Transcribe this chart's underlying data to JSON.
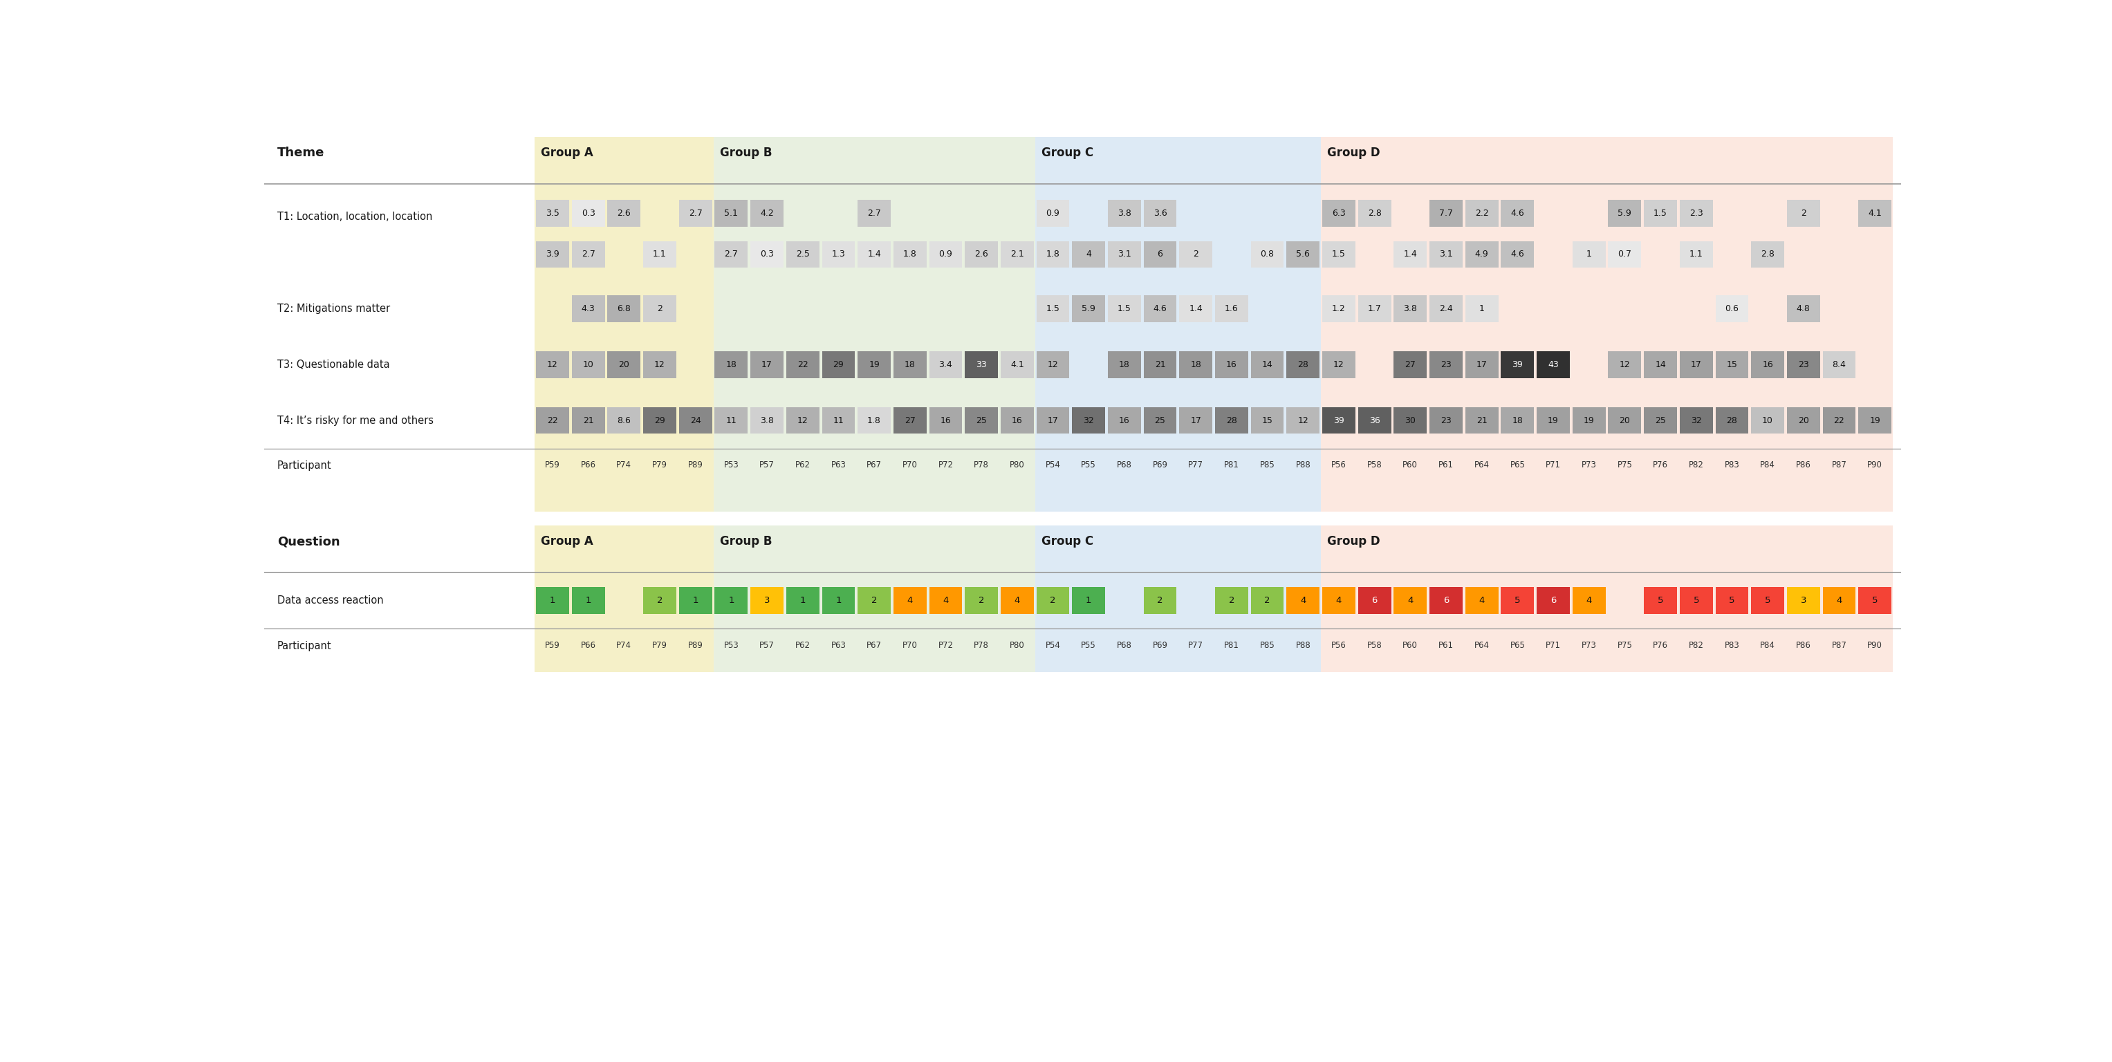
{
  "title_row_label": "Theme",
  "title_row_label2": "Question",
  "groups": [
    "Group A",
    "Group B",
    "Group C",
    "Group D"
  ],
  "group_bg_colors": [
    "#f5f0c8",
    "#e8f0e0",
    "#ddeaf5",
    "#fce8e0"
  ],
  "participants": [
    "P59",
    "P66",
    "P74",
    "P79",
    "P89",
    "P53",
    "P57",
    "P62",
    "P63",
    "P67",
    "P70",
    "P72",
    "P78",
    "P80",
    "P54",
    "P55",
    "P68",
    "P69",
    "P77",
    "P81",
    "P85",
    "P88",
    "P56",
    "P58",
    "P60",
    "P61",
    "P64",
    "P65",
    "P71",
    "P73",
    "P75",
    "P76",
    "P82",
    "P83",
    "P84",
    "P86",
    "P87",
    "P90"
  ],
  "group_participant_ranges": [
    [
      0,
      5
    ],
    [
      5,
      14
    ],
    [
      14,
      22
    ],
    [
      22,
      38
    ]
  ],
  "themes": [
    {
      "label": "T1: Location, location, location",
      "row1": {
        "values": [
          "3.5",
          "0.3",
          "2.6",
          "",
          "2.7",
          "5.1",
          "4.2",
          "",
          "",
          "2.7",
          "",
          "",
          "",
          "",
          "0.9",
          "",
          "3.8",
          "3.6",
          "",
          "",
          "",
          "",
          "6.3",
          "2.8",
          "",
          "7.7",
          "2.2",
          "4.6",
          "",
          "",
          "5.9",
          "1.5",
          "2.3",
          "",
          "",
          "2",
          "",
          "4.1"
        ],
        "colors": [
          "#d0d0d0",
          "#e8e8e8",
          "#c8c8c8",
          "",
          "#d0d0d0",
          "#b8b8b8",
          "#c0c0c0",
          "",
          "",
          "#c8c8c8",
          "",
          "",
          "",
          "",
          "#e0e0e0",
          "",
          "#c8c8c8",
          "#c8c8c8",
          "",
          "",
          "",
          "",
          "#b8b8b8",
          "#d0d0d0",
          "",
          "#b0b0b0",
          "#c8c8c8",
          "#c0c0c0",
          "",
          "",
          "#b8b8b8",
          "#d0d0d0",
          "#d0d0d0",
          "",
          "",
          "#d0d0d0",
          "",
          "#c0c0c0"
        ]
      },
      "row2": {
        "values": [
          "3.9",
          "2.7",
          "",
          "1.1",
          "",
          "2.7",
          "0.3",
          "2.5",
          "1.3",
          "1.4",
          "1.8",
          "0.9",
          "2.6",
          "2.1",
          "1.8",
          "4",
          "3.1",
          "6",
          "2",
          "",
          "0.8",
          "5.6",
          "1.5",
          "",
          "1.4",
          "3.1",
          "4.9",
          "4.6",
          "",
          "1",
          "0.7",
          "",
          "1.1",
          "",
          "2.8",
          "",
          "",
          ""
        ],
        "colors": [
          "#c8c8c8",
          "#d0d0d0",
          "",
          "#e0e0e0",
          "",
          "#d0d0d0",
          "#e8e8e8",
          "#d0d0d0",
          "#e0e0e0",
          "#e0e0e0",
          "#d8d8d8",
          "#e0e0e0",
          "#d0d0d0",
          "#d8d8d8",
          "#d8d8d8",
          "#c0c0c0",
          "#d0d0d0",
          "#b8b8b8",
          "#d8d8d8",
          "",
          "#e0e0e0",
          "#b8b8b8",
          "#d8d8d8",
          "",
          "#e0e0e0",
          "#d0d0d0",
          "#c0c0c0",
          "#c0c0c0",
          "",
          "#e0e0e0",
          "#e8e8e8",
          "",
          "#e0e0e0",
          "",
          "#d0d0d0",
          "",
          "",
          ""
        ]
      }
    },
    {
      "label": "T2: Mitigations matter",
      "row1": {
        "values": [
          "",
          "4.3",
          "6.8",
          "2",
          "",
          "",
          "",
          "",
          "",
          "",
          "",
          "",
          "",
          "",
          "1.5",
          "5.9",
          "1.5",
          "4.6",
          "1.4",
          "1.6",
          "",
          "",
          "1.2",
          "1.7",
          "3.8",
          "2.4",
          "1",
          "",
          "",
          "",
          "",
          "",
          "",
          "0.6",
          "",
          "4.8",
          "",
          ""
        ],
        "colors": [
          "",
          "#c0c0c0",
          "#b0b0b0",
          "#d0d0d0",
          "",
          "",
          "",
          "",
          "",
          "",
          "",
          "",
          "",
          "",
          "#d8d8d8",
          "#b8b8b8",
          "#d8d8d8",
          "#c0c0c0",
          "#e0e0e0",
          "#d8d8d8",
          "",
          "",
          "#e0e0e0",
          "#d8d8d8",
          "#c8c8c8",
          "#d0d0d0",
          "#e0e0e0",
          "",
          "",
          "",
          "",
          "",
          "",
          "#e8e8e8",
          "",
          "#c0c0c0",
          "",
          ""
        ]
      }
    },
    {
      "label": "T3: Questionable data",
      "row1": {
        "values": [
          "12",
          "10",
          "20",
          "12",
          "",
          "18",
          "17",
          "22",
          "29",
          "19",
          "18",
          "3.4",
          "33",
          "4.1",
          "12",
          "",
          "18",
          "21",
          "18",
          "16",
          "14",
          "28",
          "12",
          "",
          "27",
          "23",
          "17",
          "39",
          "43",
          "",
          "12",
          "14",
          "17",
          "15",
          "16",
          "23",
          "8.4",
          ""
        ],
        "colors": [
          "#b0b0b0",
          "#b8b8b8",
          "#989898",
          "#b0b0b0",
          "",
          "#989898",
          "#a0a0a0",
          "#909090",
          "#787878",
          "#909090",
          "#989898",
          "#d0d0d0",
          "#606060",
          "#d0d0d0",
          "#b0b0b0",
          "",
          "#989898",
          "#909090",
          "#989898",
          "#a0a0a0",
          "#a8a8a8",
          "#808080",
          "#b0b0b0",
          "",
          "#787878",
          "#888888",
          "#a0a0a0",
          "#383838",
          "#303030",
          "",
          "#b0b0b0",
          "#a8a8a8",
          "#a0a0a0",
          "#a8a8a8",
          "#a0a0a0",
          "#888888",
          "#d0d0d0",
          ""
        ]
      }
    },
    {
      "label": "T4: It’s risky for me and others",
      "row1": {
        "values": [
          "22",
          "21",
          "8.6",
          "29",
          "24",
          "11",
          "3.8",
          "12",
          "11",
          "1.8",
          "27",
          "16",
          "25",
          "16",
          "17",
          "32",
          "16",
          "25",
          "17",
          "28",
          "15",
          "12",
          "39",
          "36",
          "30",
          "23",
          "21",
          "18",
          "19",
          "19",
          "20",
          "25",
          "32",
          "28",
          "10",
          "20",
          "22",
          "19"
        ],
        "colors": [
          "#a0a0a0",
          "#a0a0a0",
          "#c0c0c0",
          "#787878",
          "#888888",
          "#b8b8b8",
          "#d0d0d0",
          "#b0b0b0",
          "#b8b8b8",
          "#d8d8d8",
          "#787878",
          "#a8a8a8",
          "#888888",
          "#a8a8a8",
          "#a8a8a8",
          "#707070",
          "#a8a8a8",
          "#888888",
          "#a8a8a8",
          "#808080",
          "#b0b0b0",
          "#b8b8b8",
          "#585858",
          "#606060",
          "#707070",
          "#909090",
          "#a0a0a0",
          "#a8a8a8",
          "#a0a0a0",
          "#a0a0a0",
          "#a0a0a0",
          "#909090",
          "#787878",
          "#808080",
          "#c0c0c0",
          "#a0a0a0",
          "#989898",
          "#a0a0a0"
        ]
      }
    }
  ],
  "data_access": {
    "label": "Data access reaction",
    "values": [
      "1",
      "1",
      "",
      "2",
      "1",
      "1",
      "3",
      "1",
      "1",
      "2",
      "4",
      "4",
      "2",
      "4",
      "2",
      "1",
      "",
      "2",
      "",
      "2",
      "2",
      "4",
      "4",
      "6",
      "4",
      "6",
      "4",
      "5",
      "6",
      "4",
      "",
      "5",
      "5",
      "5",
      "5",
      "3",
      "4",
      "5"
    ],
    "color_map": {
      "1": "#4caf50",
      "2": "#8bc34a",
      "3": "#ffc107",
      "4": "#ff9800",
      "5": "#f44336",
      "6": "#d32f2f"
    }
  },
  "white_bg": "#ffffff"
}
